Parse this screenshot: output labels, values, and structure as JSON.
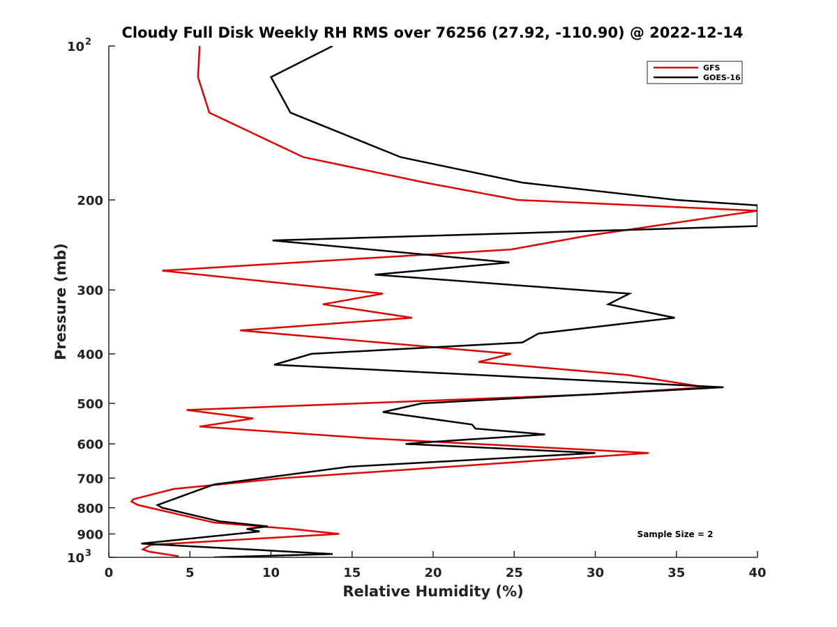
{
  "chart_data": {
    "type": "line",
    "title": "Cloudy Full Disk Weekly RH RMS over 76256 (27.92, -110.90) @ 2022-12-14",
    "xlabel": "Relative Humidity (%)",
    "ylabel": "Pressure (mb)",
    "xlim": [
      0,
      40
    ],
    "ylim": [
      100,
      1000
    ],
    "yscale": "log",
    "y_reversed": true,
    "x_ticks": [
      "0",
      "5",
      "10",
      "15",
      "20",
      "25",
      "30",
      "35",
      "40"
    ],
    "y_ticks": [
      {
        "value": 100,
        "base": "10",
        "exp": "2"
      },
      {
        "value": 200,
        "label": "200"
      },
      {
        "value": 300,
        "label": "300"
      },
      {
        "value": 400,
        "label": "400"
      },
      {
        "value": 500,
        "label": "500"
      },
      {
        "value": 600,
        "label": "600"
      },
      {
        "value": 700,
        "label": "700"
      },
      {
        "value": 800,
        "label": "800"
      },
      {
        "value": 900,
        "label": "900"
      },
      {
        "value": 1000,
        "base": "10",
        "exp": "3"
      }
    ],
    "legend_position": "top-right",
    "annotation": "Sample Size = 2",
    "series": [
      {
        "name": "GFS",
        "color": "#e00000",
        "points": [
          [
            5.6,
            100
          ],
          [
            5.5,
            115
          ],
          [
            6.2,
            135
          ],
          [
            12.0,
            165
          ],
          [
            19.5,
            185
          ],
          [
            25.2,
            200
          ],
          [
            40.0,
            210
          ],
          [
            29.5,
            235
          ],
          [
            24.8,
            250
          ],
          [
            3.3,
            275
          ],
          [
            16.9,
            305
          ],
          [
            13.2,
            320
          ],
          [
            18.7,
            340
          ],
          [
            8.1,
            360
          ],
          [
            24.8,
            400
          ],
          [
            22.8,
            415
          ],
          [
            32.0,
            440
          ],
          [
            36.8,
            465
          ],
          [
            30.0,
            480
          ],
          [
            4.8,
            515
          ],
          [
            8.9,
            535
          ],
          [
            5.6,
            555
          ],
          [
            16.0,
            585
          ],
          [
            33.3,
            625
          ],
          [
            10.8,
            700
          ],
          [
            4.0,
            735
          ],
          [
            1.5,
            770
          ],
          [
            1.4,
            778
          ],
          [
            1.8,
            790
          ],
          [
            6.5,
            855
          ],
          [
            11.3,
            880
          ],
          [
            14.2,
            900
          ],
          [
            2.6,
            945
          ],
          [
            2.1,
            965
          ],
          [
            2.5,
            975
          ],
          [
            4.3,
            995
          ]
        ]
      },
      {
        "name": "GOES-16",
        "color": "#000000",
        "points": [
          [
            13.8,
            100
          ],
          [
            10.0,
            115
          ],
          [
            11.2,
            135
          ],
          [
            18.0,
            165
          ],
          [
            25.5,
            185
          ],
          [
            35.0,
            200
          ],
          [
            40.0,
            205
          ],
          [
            40.0,
            225
          ],
          [
            10.1,
            240
          ],
          [
            24.7,
            265
          ],
          [
            16.4,
            280
          ],
          [
            32.1,
            305
          ],
          [
            30.8,
            320
          ],
          [
            34.9,
            340
          ],
          [
            26.5,
            365
          ],
          [
            25.5,
            380
          ],
          [
            12.5,
            400
          ],
          [
            10.2,
            420
          ],
          [
            37.9,
            465
          ],
          [
            19.3,
            500
          ],
          [
            16.9,
            520
          ],
          [
            22.4,
            550
          ],
          [
            22.6,
            560
          ],
          [
            26.9,
            575
          ],
          [
            19.8,
            595
          ],
          [
            18.3,
            600
          ],
          [
            30.0,
            625
          ],
          [
            14.8,
            665
          ],
          [
            6.5,
            720
          ],
          [
            3.0,
            790
          ],
          [
            3.3,
            800
          ],
          [
            4.7,
            820
          ],
          [
            6.8,
            850
          ],
          [
            9.8,
            870
          ],
          [
            8.5,
            880
          ],
          [
            9.3,
            890
          ],
          [
            2.0,
            940
          ],
          [
            13.8,
            985
          ],
          [
            6.5,
            1000
          ]
        ]
      }
    ]
  }
}
